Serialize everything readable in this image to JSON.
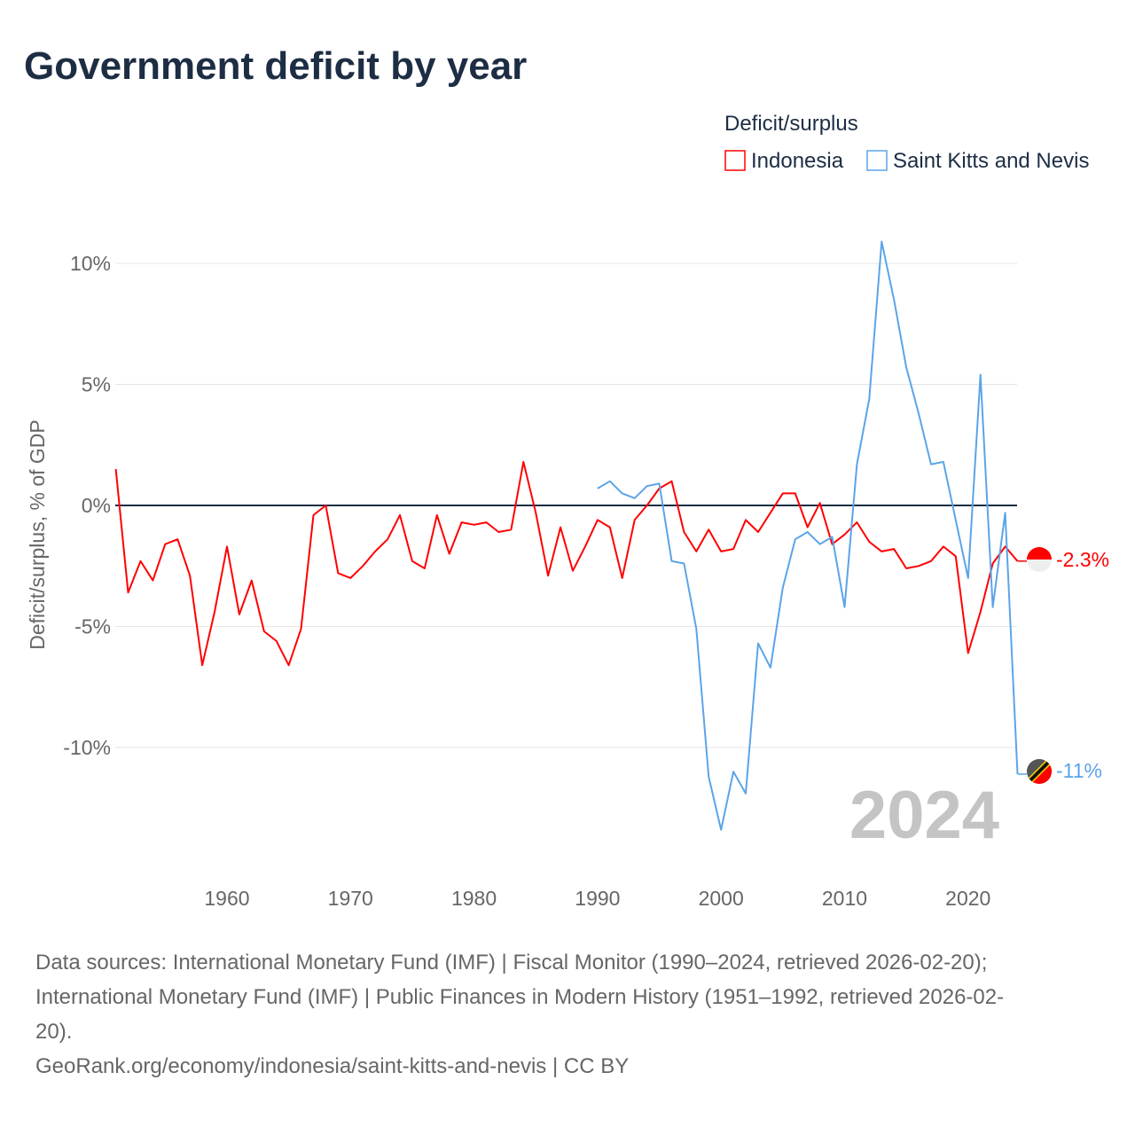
{
  "chart_data": {
    "type": "line",
    "title": "Government deficit by year",
    "xlabel": "",
    "ylabel": "Deficit/surplus, % of GDP",
    "xlim": [
      1951,
      2024
    ],
    "ylim": [
      -15,
      12
    ],
    "x_ticks": [
      1960,
      1970,
      1980,
      1990,
      2000,
      2010,
      2020
    ],
    "x_tick_labels": [
      "1960",
      "1970",
      "1980",
      "1990",
      "2000",
      "2010",
      "2020"
    ],
    "y_ticks": [
      10,
      5,
      0,
      -5,
      -10
    ],
    "y_tick_labels": [
      "10%",
      "5%",
      "0%",
      "-5%",
      "-10%"
    ],
    "grid": true,
    "legend_title": "Deficit/surplus",
    "legend_position": "top-right",
    "year_watermark": "2024",
    "series": [
      {
        "name": "Indonesia",
        "color": "#ff0000",
        "end_label": "-2.3%",
        "start_year": 1951,
        "values": [
          1.5,
          -3.6,
          -2.3,
          -3.1,
          -1.6,
          -1.4,
          -2.9,
          -6.6,
          -4.4,
          -1.7,
          -4.5,
          -3.1,
          -5.2,
          -5.6,
          -6.6,
          -5.1,
          -0.4,
          0,
          -2.8,
          -3.0,
          -2.5,
          -1.9,
          -1.4,
          -0.4,
          -2.3,
          -2.6,
          -0.4,
          -2.0,
          -0.7,
          -0.8,
          -0.7,
          -1.1,
          -1.0,
          1.8,
          -0.3,
          -2.9,
          -0.9,
          -2.7,
          -1.7,
          -0.6,
          -0.9,
          -3.0,
          -0.6,
          0,
          0.7,
          1.0,
          -1.1,
          -1.9,
          -1.0,
          -1.9,
          -1.8,
          -0.6,
          -1.1,
          -0.3,
          0.5,
          0.5,
          -0.9,
          0.1,
          -1.6,
          -1.2,
          -0.7,
          -1.5,
          -1.9,
          -1.8,
          -2.6,
          -2.5,
          -2.3,
          -1.7,
          -2.1,
          -6.1,
          -4.4,
          -2.4,
          -1.7,
          -2.3
        ]
      },
      {
        "name": "Saint Kitts and Nevis",
        "color": "#5ba4e8",
        "end_label": "-11%",
        "start_year": 1990,
        "values": [
          0.7,
          1.0,
          0.5,
          0.3,
          0.8,
          0.9,
          -2.3,
          -2.4,
          -5.1,
          -11.2,
          -13.4,
          -11.0,
          -11.9,
          -5.7,
          -6.7,
          -3.4,
          -1.4,
          -1.1,
          -1.6,
          -1.3,
          -4.2,
          1.7,
          4.4,
          10.9,
          8.5,
          5.7,
          3.8,
          1.7,
          1.8,
          -0.6,
          -3.0,
          5.4,
          -4.2,
          -0.3,
          -11.1
        ]
      }
    ]
  },
  "footer": {
    "line1": "Data sources: International Monetary Fund (IMF) | Fiscal Monitor (1990–2024, retrieved 2026-02-20);",
    "line2": "International Monetary Fund (IMF) | Public Finances in Modern History (1951–1992, retrieved 2026-02-",
    "line3": "20).",
    "line4": "GeoRank.org/economy/indonesia/saint-kitts-and-nevis | CC BY"
  }
}
